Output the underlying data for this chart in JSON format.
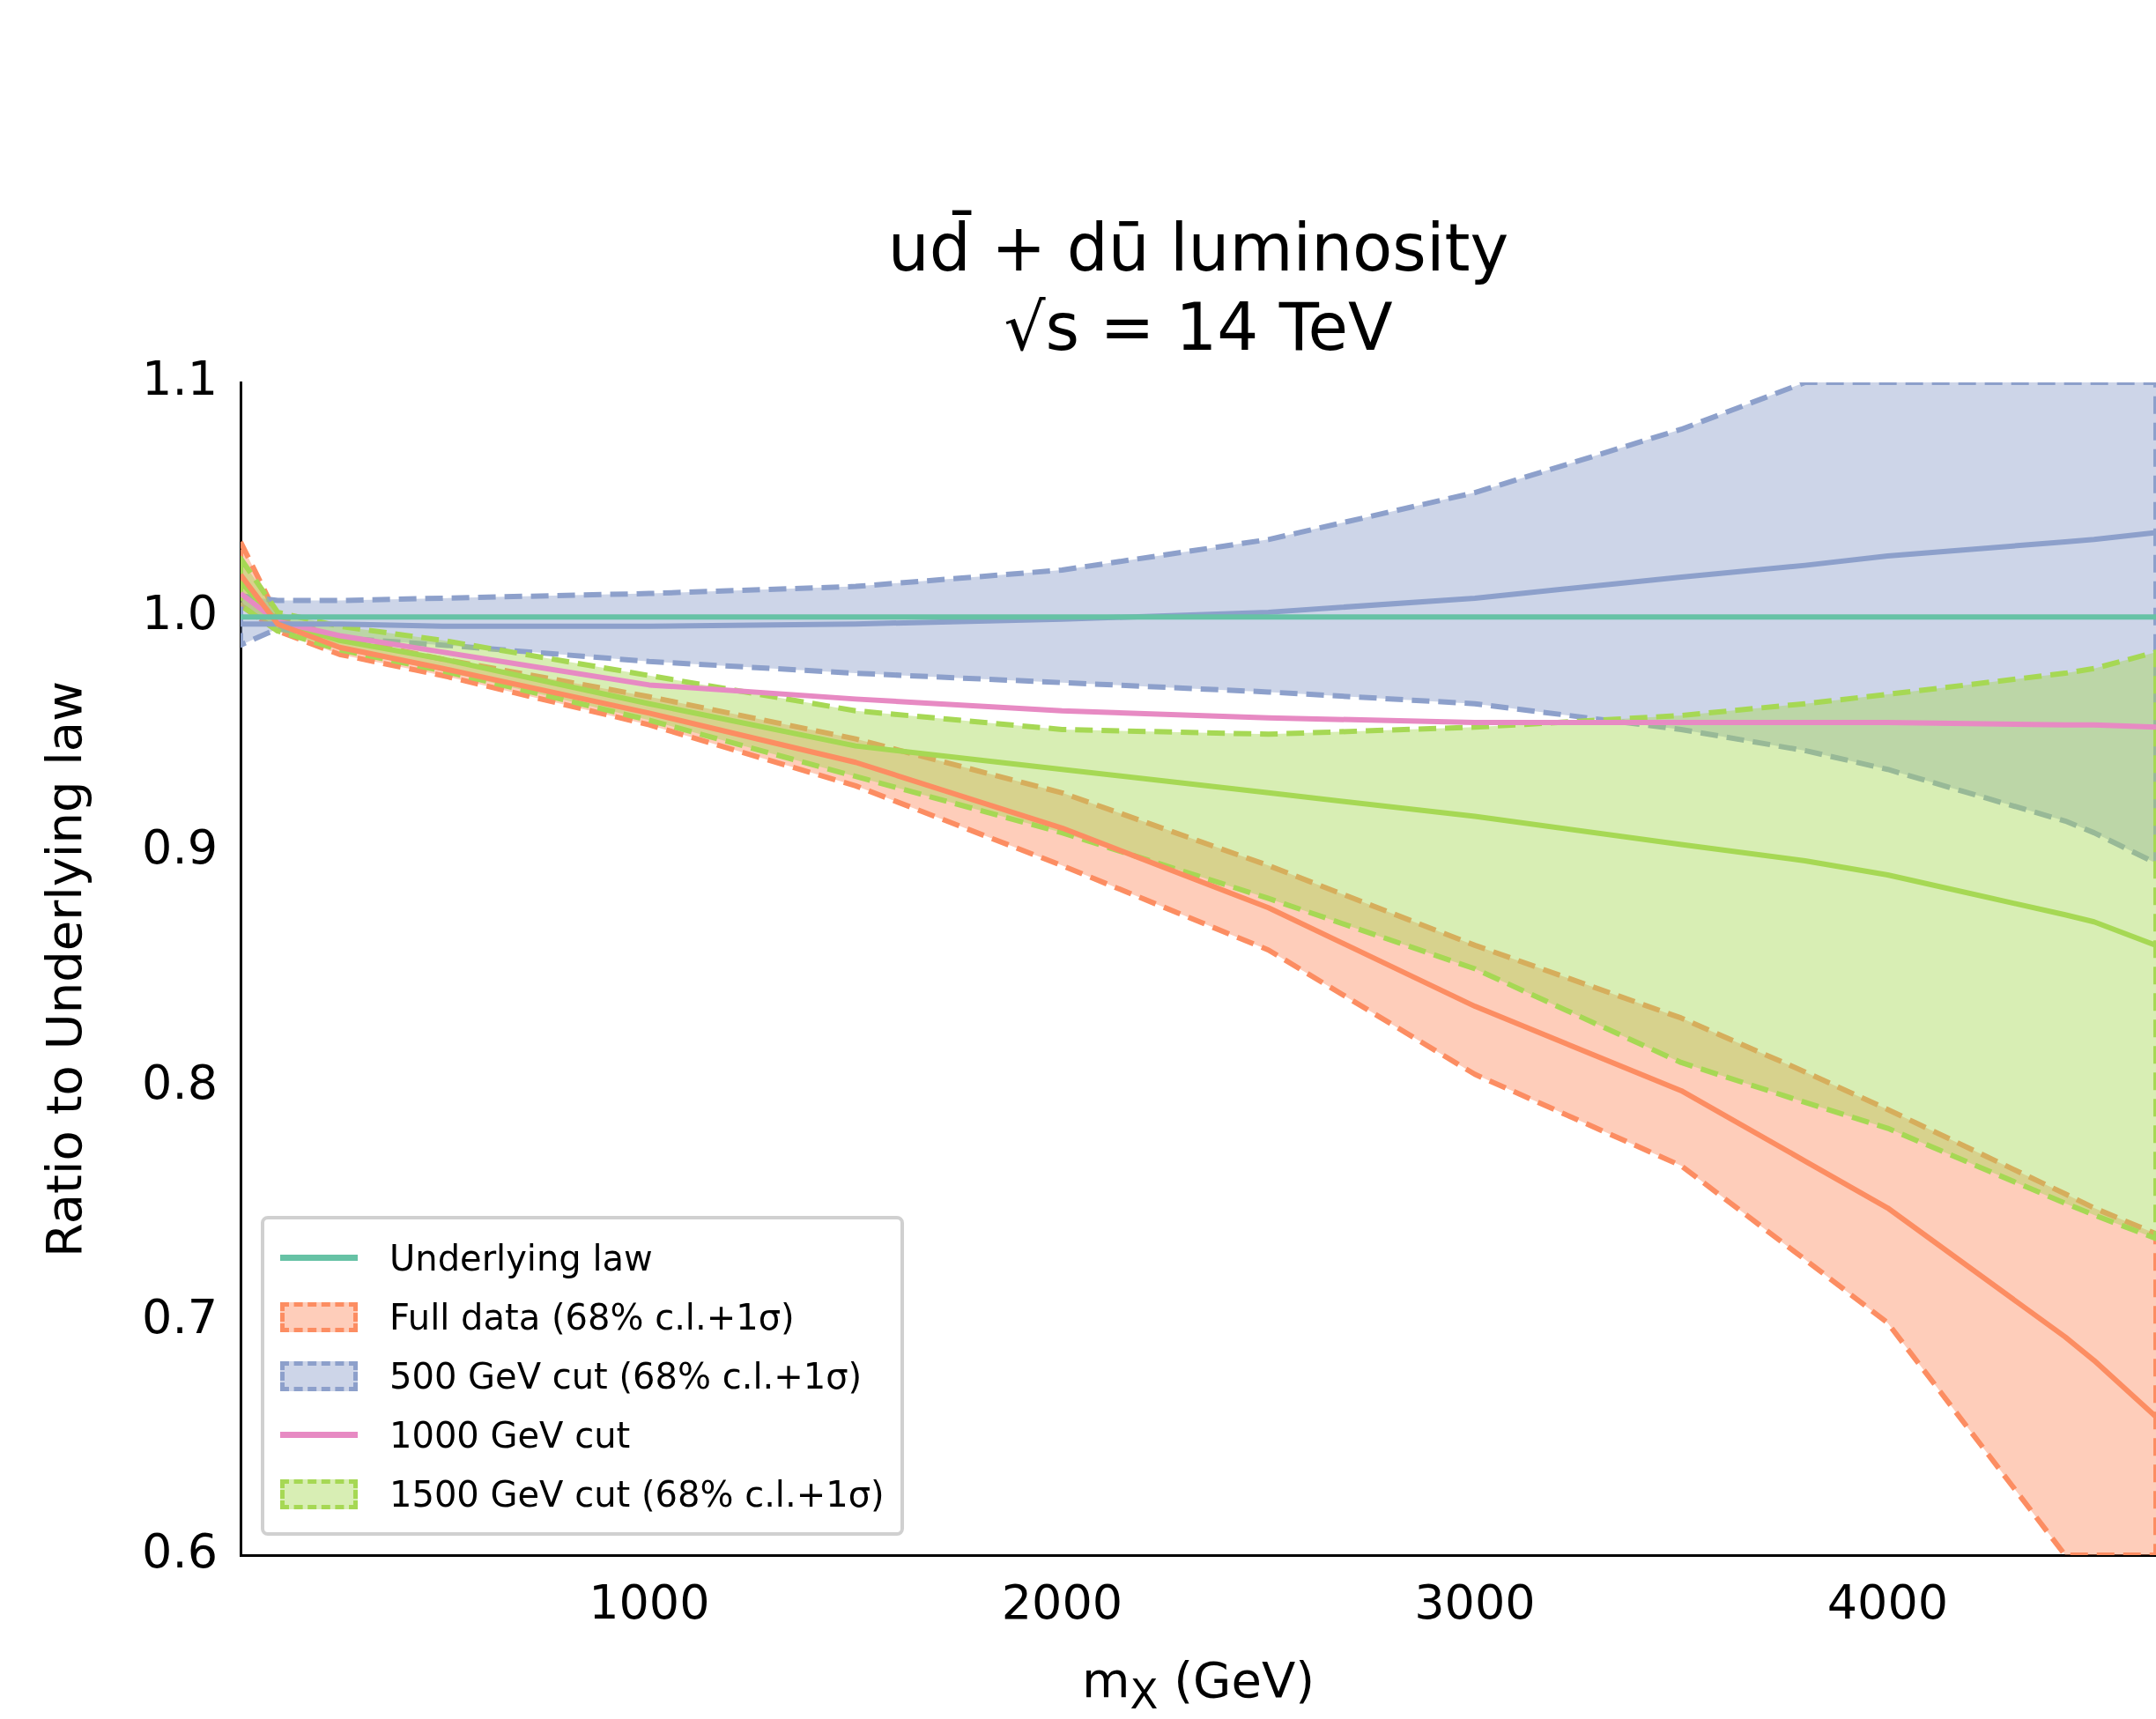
{
  "chart_data": {
    "type": "line",
    "title": "ud̄ + dū luminosity",
    "subtitle": "√s = 14 TeV",
    "xlabel": "m$_{X}$ (GeV)",
    "ylabel": "Ratio to Underlying law",
    "x": [
      10,
      100,
      250,
      500,
      1000,
      1500,
      2000,
      2500,
      3000,
      3500,
      3800,
      4000,
      4430,
      4500,
      4650
    ],
    "series": [
      {
        "name": "Underlying law",
        "color": "#66c2a5",
        "values": [
          1,
          1,
          1,
          1,
          1,
          1,
          1,
          1,
          1,
          1,
          1,
          1,
          1,
          1,
          1
        ]
      },
      {
        "name": "Full data (68% c.l.+1σ)",
        "color": "#fc8d62",
        "values": [
          1.018,
          0.997,
          0.987,
          0.978,
          0.959,
          0.938,
          0.91,
          0.876,
          0.834,
          0.798,
          0.768,
          0.748,
          0.693,
          0.683,
          0.659
        ],
        "lower": [
          1.005,
          0.994,
          0.984,
          0.975,
          0.954,
          0.928,
          0.894,
          0.858,
          0.805,
          0.766,
          0.726,
          0.699,
          0.6,
          0.6,
          0.6
        ],
        "upper": [
          1.032,
          1.0,
          0.991,
          0.982,
          0.966,
          0.948,
          0.925,
          0.894,
          0.86,
          0.829,
          0.806,
          0.79,
          0.754,
          0.748,
          0.737
        ]
      },
      {
        "name": "500 GeV cut (68% c.l.+1σ)",
        "color": "#8da0cb",
        "values": [
          0.997,
          0.997,
          0.997,
          0.996,
          0.996,
          0.997,
          0.999,
          1.002,
          1.008,
          1.017,
          1.022,
          1.026,
          1.032,
          1.033,
          1.036
        ],
        "lower": [
          0.988,
          0.995,
          0.991,
          0.988,
          0.981,
          0.976,
          0.972,
          0.968,
          0.963,
          0.952,
          0.943,
          0.935,
          0.913,
          0.908,
          0.895
        ],
        "upper": [
          1.009,
          1.007,
          1.007,
          1.008,
          1.01,
          1.013,
          1.02,
          1.033,
          1.053,
          1.08,
          1.1,
          1.1,
          1.1,
          1.1,
          1.1
        ]
      },
      {
        "name": "1000 GeV cut",
        "color": "#e78ac3",
        "values": [
          1.01,
          0.998,
          0.992,
          0.985,
          0.971,
          0.965,
          0.96,
          0.957,
          0.955,
          0.955,
          0.955,
          0.955,
          0.954,
          0.954,
          0.953
        ]
      },
      {
        "name": "1500 GeV cut (68% c.l.+1σ)",
        "color": "#a6d854",
        "values": [
          1.015,
          0.998,
          0.99,
          0.982,
          0.963,
          0.945,
          0.935,
          0.925,
          0.915,
          0.903,
          0.896,
          0.89,
          0.873,
          0.87,
          0.86
        ],
        "lower": [
          1.005,
          0.994,
          0.986,
          0.977,
          0.956,
          0.932,
          0.908,
          0.88,
          0.85,
          0.81,
          0.793,
          0.782,
          0.75,
          0.745,
          0.735
        ],
        "upper": [
          1.025,
          1.002,
          0.996,
          0.99,
          0.975,
          0.96,
          0.952,
          0.95,
          0.953,
          0.958,
          0.963,
          0.967,
          0.976,
          0.978,
          0.985
        ]
      }
    ],
    "xlim": [
      10,
      4650
    ],
    "xticks": [
      1000,
      2000,
      3000,
      4000
    ],
    "ylim": [
      0.6,
      1.1
    ],
    "yticks": [
      0.6,
      0.7,
      0.8,
      0.9,
      {
        "value": 1.0,
        "label": "1.0"
      },
      1.1
    ],
    "legend": "lower left"
  }
}
